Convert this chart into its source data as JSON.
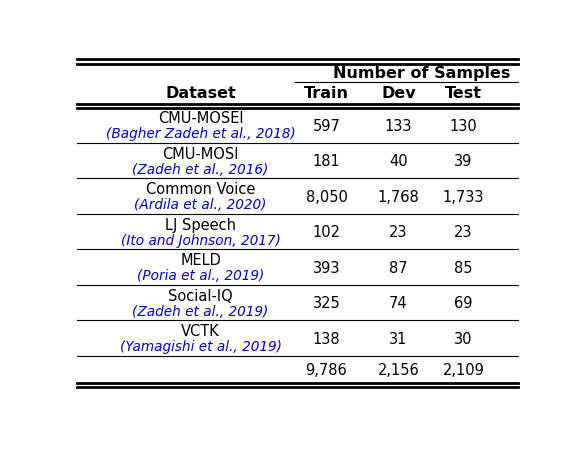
{
  "title": "Number of Samples",
  "col_headers": [
    "Dataset",
    "Train",
    "Dev",
    "Test"
  ],
  "rows": [
    {
      "name": "CMU-MOSEI",
      "cite": "(Bagher Zadeh et al., 2018)",
      "train": "597",
      "dev": "133",
      "test": "130"
    },
    {
      "name": "CMU-MOSI",
      "cite": "(Zadeh et al., 2016)",
      "train": "181",
      "dev": "40",
      "test": "39"
    },
    {
      "name": "Common Voice",
      "cite": "(Ardila et al., 2020)",
      "train": "8,050",
      "dev": "1,768",
      "test": "1,733"
    },
    {
      "name": "LJ Speech",
      "cite": "(Ito and Johnson, 2017)",
      "train": "102",
      "dev": "23",
      "test": "23"
    },
    {
      "name": "MELD",
      "cite": "(Poria et al., 2019)",
      "train": "393",
      "dev": "87",
      "test": "85"
    },
    {
      "name": "Social-IQ",
      "cite": "(Zadeh et al., 2019)",
      "train": "325",
      "dev": "74",
      "test": "69"
    },
    {
      "name": "VCTK",
      "cite": "(Yamagishi et al., 2019)",
      "train": "138",
      "dev": "31",
      "test": "30"
    }
  ],
  "totals": [
    "9,786",
    "2,156",
    "2,109"
  ],
  "cite_color": "#0000CC",
  "name_color": "#000000",
  "value_color": "#000000",
  "bg_color": "#ffffff",
  "header_color": "#000000"
}
